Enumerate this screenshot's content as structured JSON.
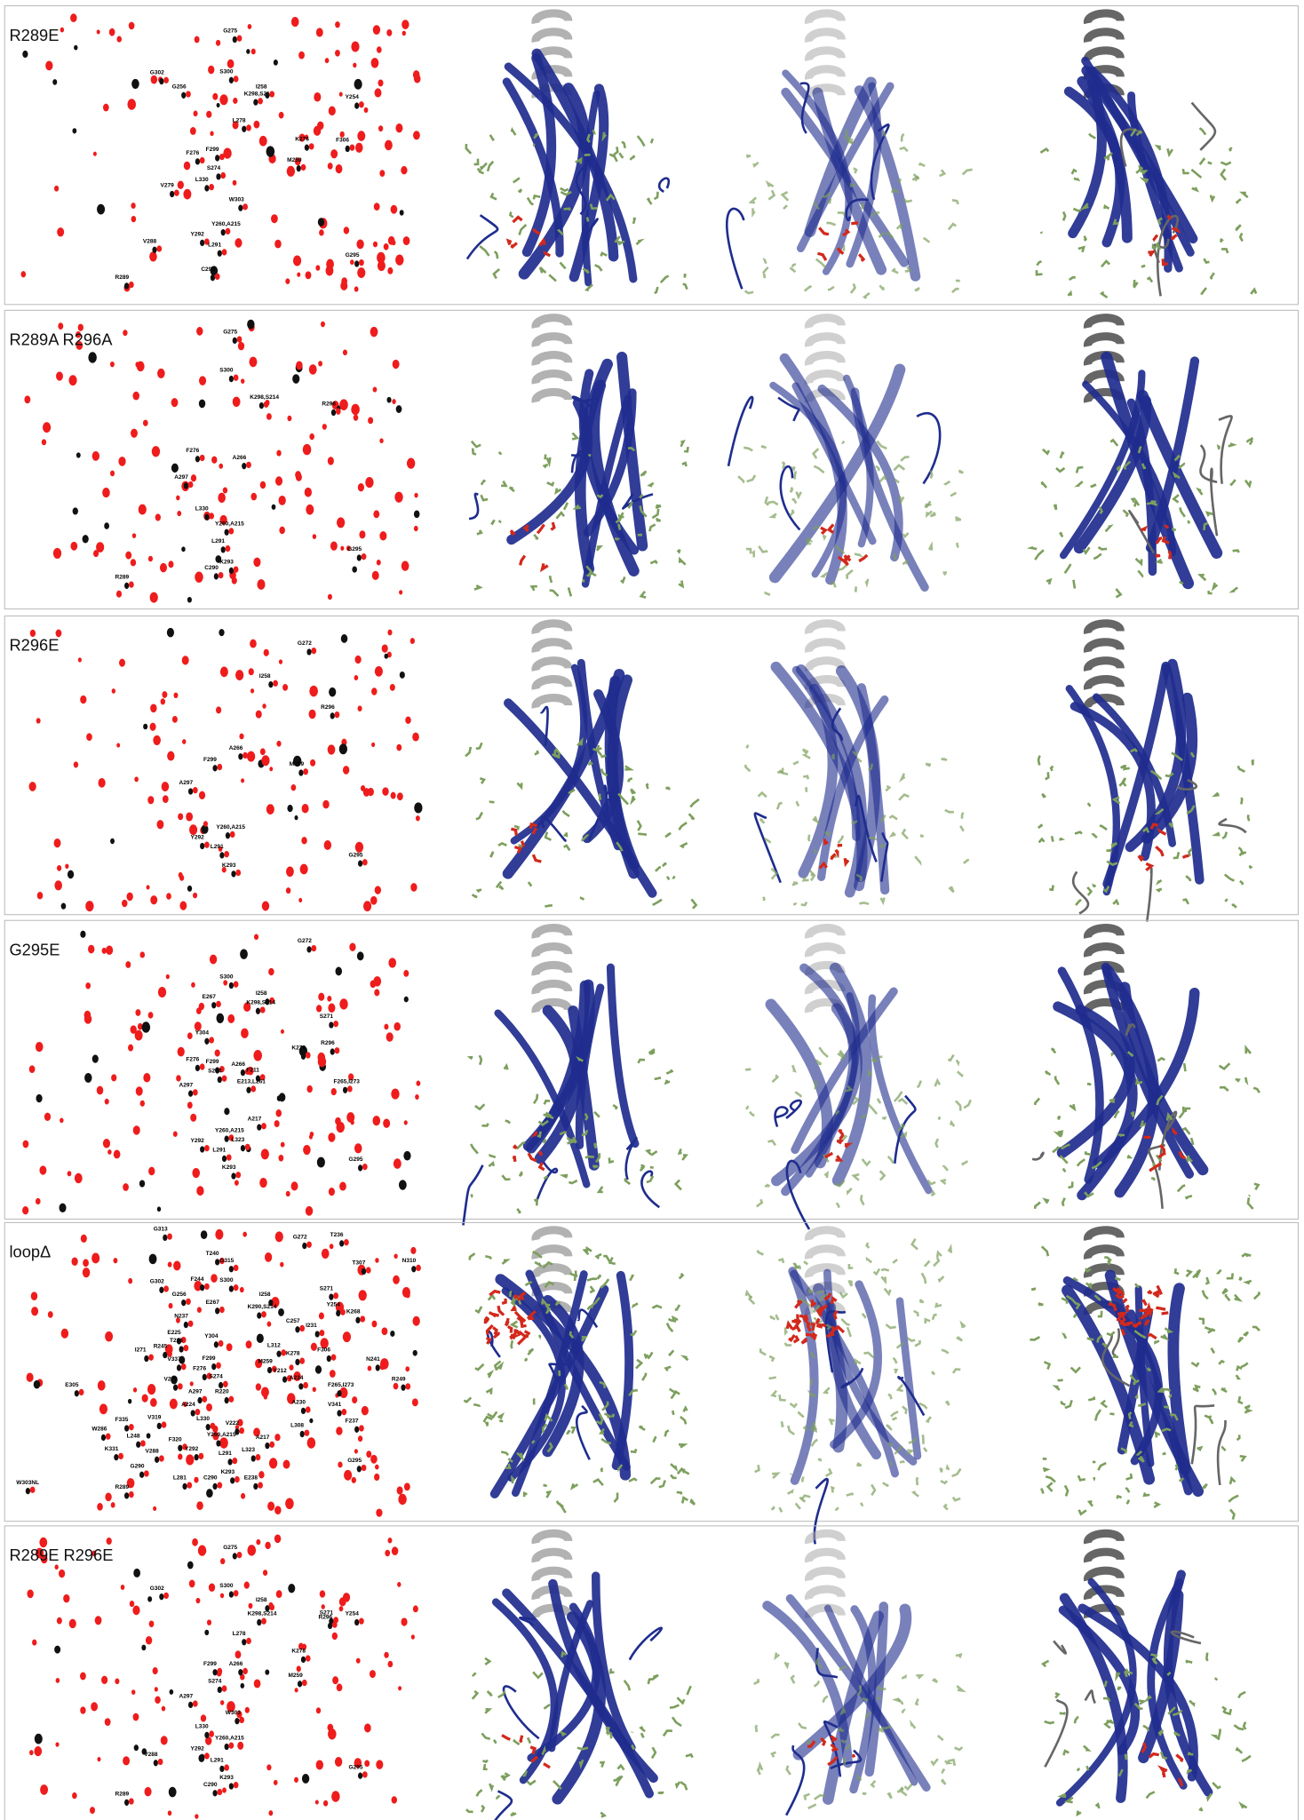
{
  "panels": [
    {
      "label": "R289E",
      "peaks": [
        "G275",
        "G302",
        "S300",
        "G256",
        "K298,S214",
        "I258",
        "Y254",
        "L278",
        "K276",
        "F276",
        "F299",
        "M259",
        "F306",
        "S274",
        "V279",
        "L330",
        "W303",
        "Y260,A215",
        "V288",
        "Y292",
        "L291",
        "G295",
        "C290",
        "R289"
      ]
    },
    {
      "label": "R289A R296A",
      "peaks": [
        "G275",
        "S300",
        "K298,S214",
        "R296",
        "F276",
        "A266",
        "A297",
        "L330",
        "Y260,A215",
        "L291",
        "K293",
        "C290",
        "G295",
        "R289"
      ]
    },
    {
      "label": "R296E",
      "peaks": [
        "G272",
        "I258",
        "R296",
        "A266",
        "F299",
        "M259",
        "A297",
        "Y260,A215",
        "Y292",
        "L291",
        "K293",
        "G295"
      ]
    },
    {
      "label": "G295E",
      "peaks": [
        "G272",
        "S300",
        "I258",
        "E267",
        "K298,S214",
        "S271",
        "R296",
        "Y304",
        "K278",
        "F276",
        "F299",
        "A266",
        "F211",
        "S274",
        "E213,L261",
        "F265,I273",
        "A297",
        "A217",
        "Y260,A215",
        "Y292",
        "L323",
        "L291",
        "K293",
        "G295"
      ]
    },
    {
      "label": "loopΔ",
      "peaks": [
        "G313",
        "T236",
        "G272",
        "T240",
        "G315",
        "T307",
        "N310",
        "F244",
        "S300",
        "G302",
        "G256",
        "I258",
        "S271",
        "E267",
        "K290,S214",
        "Y254",
        "K268",
        "N237",
        "C257",
        "I231",
        "E225",
        "T223",
        "Y304",
        "L312",
        "F306",
        "N241",
        "I271",
        "R245",
        "V337",
        "F299",
        "K278",
        "F276",
        "M259",
        "Y212",
        "A234",
        "S274",
        "V279",
        "E305",
        "A297",
        "R220",
        "F265,I273",
        "R249",
        "A230",
        "V341",
        "F237",
        "A224",
        "V319",
        "L330",
        "V222",
        "L308",
        "F335",
        "W286",
        "L248",
        "Y260,A215",
        "F320",
        "A217",
        "K331",
        "Y292",
        "V288",
        "L323",
        "L291",
        "G290",
        "K293",
        "C290",
        "E238",
        "L281",
        "R289",
        "G295",
        "W303NL"
      ]
    },
    {
      "label": "R289E R296E",
      "peaks": [
        "G275",
        "G302",
        "S300",
        "I258",
        "S271",
        "K298,S214",
        "R296",
        "Y254",
        "L278",
        "K278",
        "F299",
        "A266",
        "M259",
        "S274",
        "A297",
        "W303",
        "L330",
        "Y260,A215",
        "Y292",
        "V288",
        "L291",
        "K293",
        "C290",
        "G295",
        "R289"
      ]
    }
  ]
}
